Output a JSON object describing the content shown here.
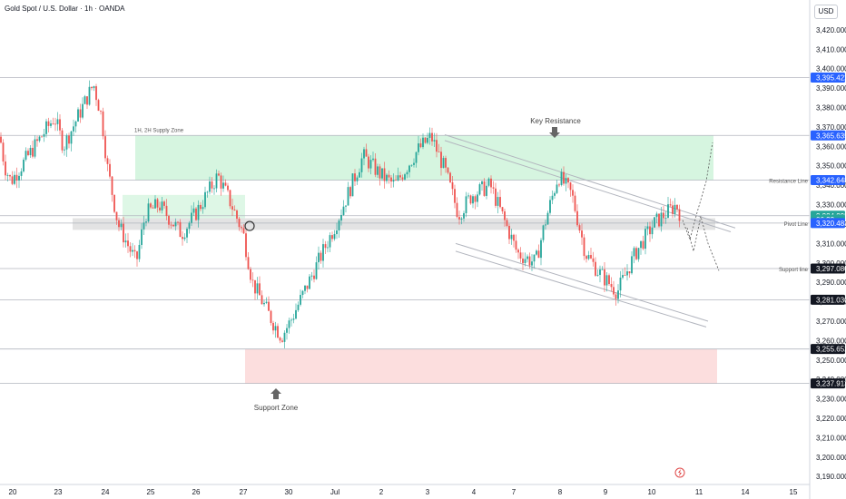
{
  "header": {
    "title": "Gold Spot / U.S. Dollar · 1h · OANDA",
    "currency": "USD"
  },
  "colors": {
    "up": "#26a69a",
    "down": "#ef5350",
    "supply_zone": "#d6f5e0",
    "support_zone": "#fcdede",
    "pivot_zone": "#e3e3e3",
    "line": "#b2b5be",
    "label_blue": "#2962ff",
    "label_dark": "#131722",
    "label_green": "#26a69a"
  },
  "annotations": {
    "supply_zone": "1H, 2H Supply Zone",
    "key_resistance": "Key Resistance",
    "support_zone": "Support Zone",
    "resistance_line": "Resistance Line",
    "pivot_line": "Pivot Line",
    "support_line": "Support line"
  },
  "chart_data": {
    "type": "candlestick",
    "title": "Gold Spot / U.S. Dollar · 1h · OANDA",
    "ylim": [
      3185,
      3440
    ],
    "y_ticks": [
      3190,
      3200,
      3210,
      3220,
      3230,
      3240,
      3250,
      3260,
      3270,
      3280,
      3290,
      3300,
      3310,
      3320,
      3330,
      3340,
      3350,
      3360,
      3370,
      3380,
      3390,
      3400,
      3410,
      3420
    ],
    "y_tick_labels": [
      "3,190.000",
      "3,200.000",
      "3,210.000",
      "3,220.000",
      "3,230.000",
      "3,240.000",
      "3,250.000",
      "3,260.000",
      "3,270.000",
      "3,280.000",
      "3,290.000",
      "3,300.000",
      "3,310.000",
      "3,320.000",
      "3,330.000",
      "3,340.000",
      "3,350.000",
      "3,360.000",
      "3,370.000",
      "3,380.000",
      "3,390.000",
      "3,400.000",
      "3,410.000",
      "3,420.000"
    ],
    "x_tick_labels": [
      "20",
      "23",
      "24",
      "25",
      "26",
      "27",
      "30",
      "Jul",
      "2",
      "3",
      "4",
      "7",
      "8",
      "9",
      "10",
      "11",
      "14",
      "15"
    ],
    "price_labels": [
      {
        "text": "3,395.422",
        "value": 3395.422,
        "style": "blue"
      },
      {
        "text": "3,365.635",
        "value": 3365.635,
        "style": "blue"
      },
      {
        "text": "3,342.648",
        "value": 3342.648,
        "style": "blue"
      },
      {
        "text": "3,324.295",
        "value": 3324.295,
        "style": "green"
      },
      {
        "text": "06:33",
        "value": 3322.3,
        "style": "green"
      },
      {
        "text": "3,320.483",
        "value": 3320.483,
        "style": "blue"
      },
      {
        "text": "3,297.080",
        "value": 3297.08,
        "style": "dark"
      },
      {
        "text": "3,281.030",
        "value": 3281.03,
        "style": "dark"
      },
      {
        "text": "3,255.652",
        "value": 3255.652,
        "style": "dark"
      },
      {
        "text": "3,237.913",
        "value": 3237.913,
        "style": "dark"
      }
    ],
    "zones": [
      {
        "name": "1H, 2H Supply Zone",
        "from": 3342.648,
        "to": 3365.635
      },
      {
        "name": "Support Zone",
        "from": 3237.913,
        "to": 3255.652
      },
      {
        "name": "Pivot Line",
        "from": 3317,
        "to": 3323
      }
    ],
    "levels": [
      3395.422,
      3365.635,
      3342.648,
      3324.295,
      3320.483,
      3297.08,
      3281.03,
      3255.652,
      3237.913
    ],
    "path": [
      {
        "day": "20",
        "value": 3365
      },
      {
        "day": "20",
        "value": 3350
      },
      {
        "day": "20",
        "value": 3342
      },
      {
        "day": "23",
        "value": 3375
      },
      {
        "day": "23",
        "value": 3360
      },
      {
        "day": "23",
        "value": 3392
      },
      {
        "day": "24",
        "value": 3375
      },
      {
        "day": "24",
        "value": 3350
      },
      {
        "day": "24",
        "value": 3320
      },
      {
        "day": "24",
        "value": 3300
      },
      {
        "day": "25",
        "value": 3325
      },
      {
        "day": "25",
        "value": 3330
      },
      {
        "day": "25",
        "value": 3315
      },
      {
        "day": "26",
        "value": 3325
      },
      {
        "day": "26",
        "value": 3345
      },
      {
        "day": "27",
        "value": 3330
      },
      {
        "day": "27",
        "value": 3315
      },
      {
        "day": "27",
        "value": 3290
      },
      {
        "day": "30",
        "value": 3270
      },
      {
        "day": "30",
        "value": 3262
      },
      {
        "day": "30",
        "value": 3270
      },
      {
        "day": "Jul",
        "value": 3295
      },
      {
        "day": "Jul",
        "value": 3320
      },
      {
        "day": "Jul",
        "value": 3355
      },
      {
        "day": "2",
        "value": 3345
      },
      {
        "day": "2",
        "value": 3340
      },
      {
        "day": "3",
        "value": 3358
      },
      {
        "day": "3",
        "value": 3365
      },
      {
        "day": "3",
        "value": 3348
      },
      {
        "day": "4",
        "value": 3325
      },
      {
        "day": "4",
        "value": 3335
      },
      {
        "day": "7",
        "value": 3340
      },
      {
        "day": "7",
        "value": 3305
      },
      {
        "day": "7",
        "value": 3300
      },
      {
        "day": "8",
        "value": 3320
      },
      {
        "day": "8",
        "value": 3345
      },
      {
        "day": "8",
        "value": 3335
      },
      {
        "day": "9",
        "value": 3305
      },
      {
        "day": "9",
        "value": 3295
      },
      {
        "day": "9",
        "value": 3285
      },
      {
        "day": "10",
        "value": 3305
      },
      {
        "day": "10",
        "value": 3320
      },
      {
        "day": "10",
        "value": 3330
      },
      {
        "day": "11",
        "value": 3322
      }
    ]
  }
}
